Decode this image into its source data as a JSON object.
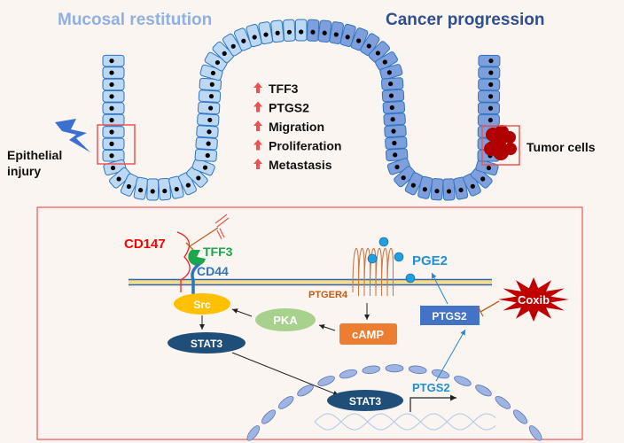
{
  "top": {
    "left_title": "Mucosal restitution",
    "right_title": "Cancer progression",
    "injury_label_1": "Epithelial",
    "injury_label_2": "injury",
    "tumor_label": "Tumor cells",
    "effects": [
      "TFF3",
      "PTGS2",
      "Migration",
      "Proliferation",
      "Metastasis"
    ]
  },
  "pathway": {
    "cd147": "CD147",
    "tff3": "TFF3",
    "cd44": "CD44",
    "src": "Src",
    "stat3_cyto": "STAT3",
    "pka": "PKA",
    "camp": "cAMP",
    "ptger4": "PTGER4",
    "pge2": "PGE2",
    "ptgs2_protein": "PTGS2",
    "coxib": "Coxib",
    "stat3_nuclear": "STAT3",
    "ptgs2_gene": "PTGS2"
  },
  "colors": {
    "left_title": "#8fb0e0",
    "right_title": "#2f4f8f",
    "cell_light": "#bcd8f2",
    "cell_dark": "#7f9fdc",
    "cell_stroke": "#2e75c0",
    "highlight_box": "#ee5555",
    "up_arrow": "#f05050",
    "cd147": "#ff0000",
    "tff3": "#1aa64a",
    "cd44": "#2e75c0",
    "src": "#ffc000",
    "stat3": "#1f4e79",
    "pka": "#a9d18e",
    "camp": "#ed7d31",
    "ptger4": "#c55a11",
    "pge2": "#1f8fd6",
    "ptgs2": "#4472c4",
    "coxib": "#c00000",
    "tumor": "#b00000"
  }
}
